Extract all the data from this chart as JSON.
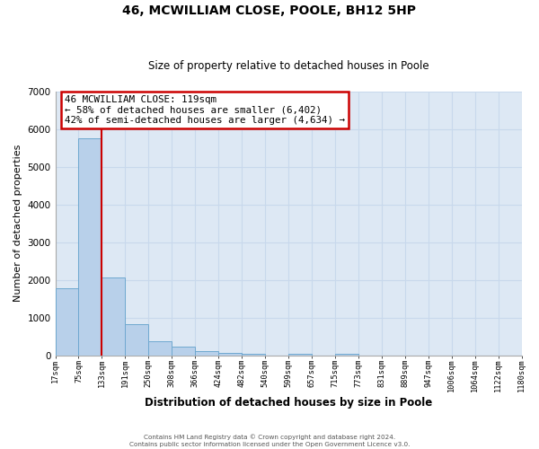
{
  "title": "46, MCWILLIAM CLOSE, POOLE, BH12 5HP",
  "subtitle": "Size of property relative to detached houses in Poole",
  "xlabel": "Distribution of detached houses by size in Poole",
  "ylabel": "Number of detached properties",
  "bin_labels": [
    "17sqm",
    "75sqm",
    "133sqm",
    "191sqm",
    "250sqm",
    "308sqm",
    "366sqm",
    "424sqm",
    "482sqm",
    "540sqm",
    "599sqm",
    "657sqm",
    "715sqm",
    "773sqm",
    "831sqm",
    "889sqm",
    "947sqm",
    "1006sqm",
    "1064sqm",
    "1122sqm",
    "1180sqm"
  ],
  "bar_values": [
    1780,
    5750,
    2050,
    820,
    360,
    220,
    110,
    55,
    35,
    0,
    25,
    0,
    45,
    0,
    0,
    0,
    0,
    0,
    0,
    0
  ],
  "bar_color": "#b8d0ea",
  "bar_edge_color": "#6fa8d0",
  "property_line_x": 2.0,
  "property_line_color": "#cc0000",
  "ylim": [
    0,
    7000
  ],
  "yticks": [
    0,
    1000,
    2000,
    3000,
    4000,
    5000,
    6000,
    7000
  ],
  "annotation_title": "46 MCWILLIAM CLOSE: 119sqm",
  "annotation_line1": "← 58% of detached houses are smaller (6,402)",
  "annotation_line2": "42% of semi-detached houses are larger (4,634) →",
  "annotation_box_color": "#cc0000",
  "footer_line1": "Contains HM Land Registry data © Crown copyright and database right 2024.",
  "footer_line2": "Contains public sector information licensed under the Open Government Licence v3.0.",
  "grid_color": "#c8d8ec",
  "background_color": "#dde8f4"
}
